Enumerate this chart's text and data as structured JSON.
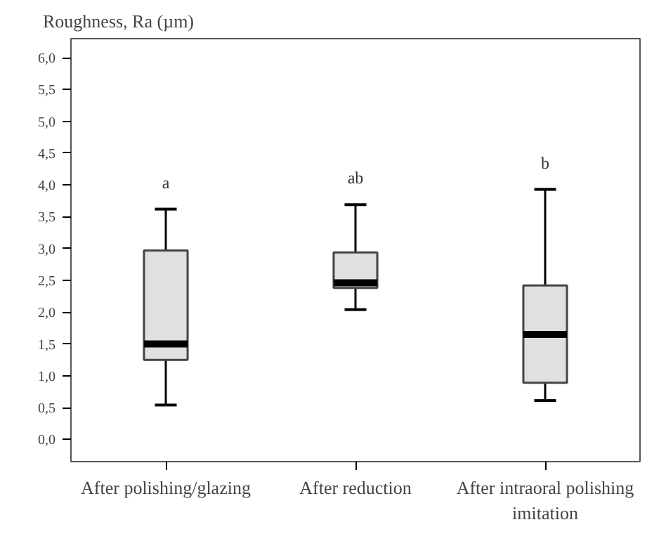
{
  "chart_data": {
    "type": "box",
    "ylabel": "Roughness, Ra (µm)",
    "categories": [
      "After polishing/glazing",
      "After reduction",
      "After intraoral polishing imitation"
    ],
    "boxes": [
      {
        "low": 0.54,
        "q1": 1.25,
        "median": 1.5,
        "q3": 2.97,
        "high": 3.62
      },
      {
        "low": 2.04,
        "q1": 2.38,
        "median": 2.46,
        "q3": 2.94,
        "high": 3.69
      },
      {
        "low": 0.61,
        "q1": 0.89,
        "median": 1.65,
        "q3": 2.42,
        "high": 3.93
      }
    ],
    "color": "#e0e0e0",
    "ylim": [
      -0.35,
      6.3
    ],
    "yticks": [
      {
        "value": 0,
        "label": "0,0"
      },
      {
        "value": 0.5,
        "label": "0,5"
      },
      {
        "value": 1,
        "label": "1,0"
      },
      {
        "value": 1.5,
        "label": "1,5"
      },
      {
        "value": 2,
        "label": "2,0"
      },
      {
        "value": 2.5,
        "label": "2,5"
      },
      {
        "value": 3,
        "label": "3,0"
      },
      {
        "value": 3.5,
        "label": "3,5"
      },
      {
        "value": 4,
        "label": "4,0"
      },
      {
        "value": 4.5,
        "label": "4,5"
      },
      {
        "value": 5,
        "label": "5,0"
      },
      {
        "value": 5.5,
        "label": "5,5"
      },
      {
        "value": 6,
        "label": "6,0"
      }
    ],
    "annotations": [
      "a",
      "ab",
      "b"
    ],
    "grid": false
  }
}
